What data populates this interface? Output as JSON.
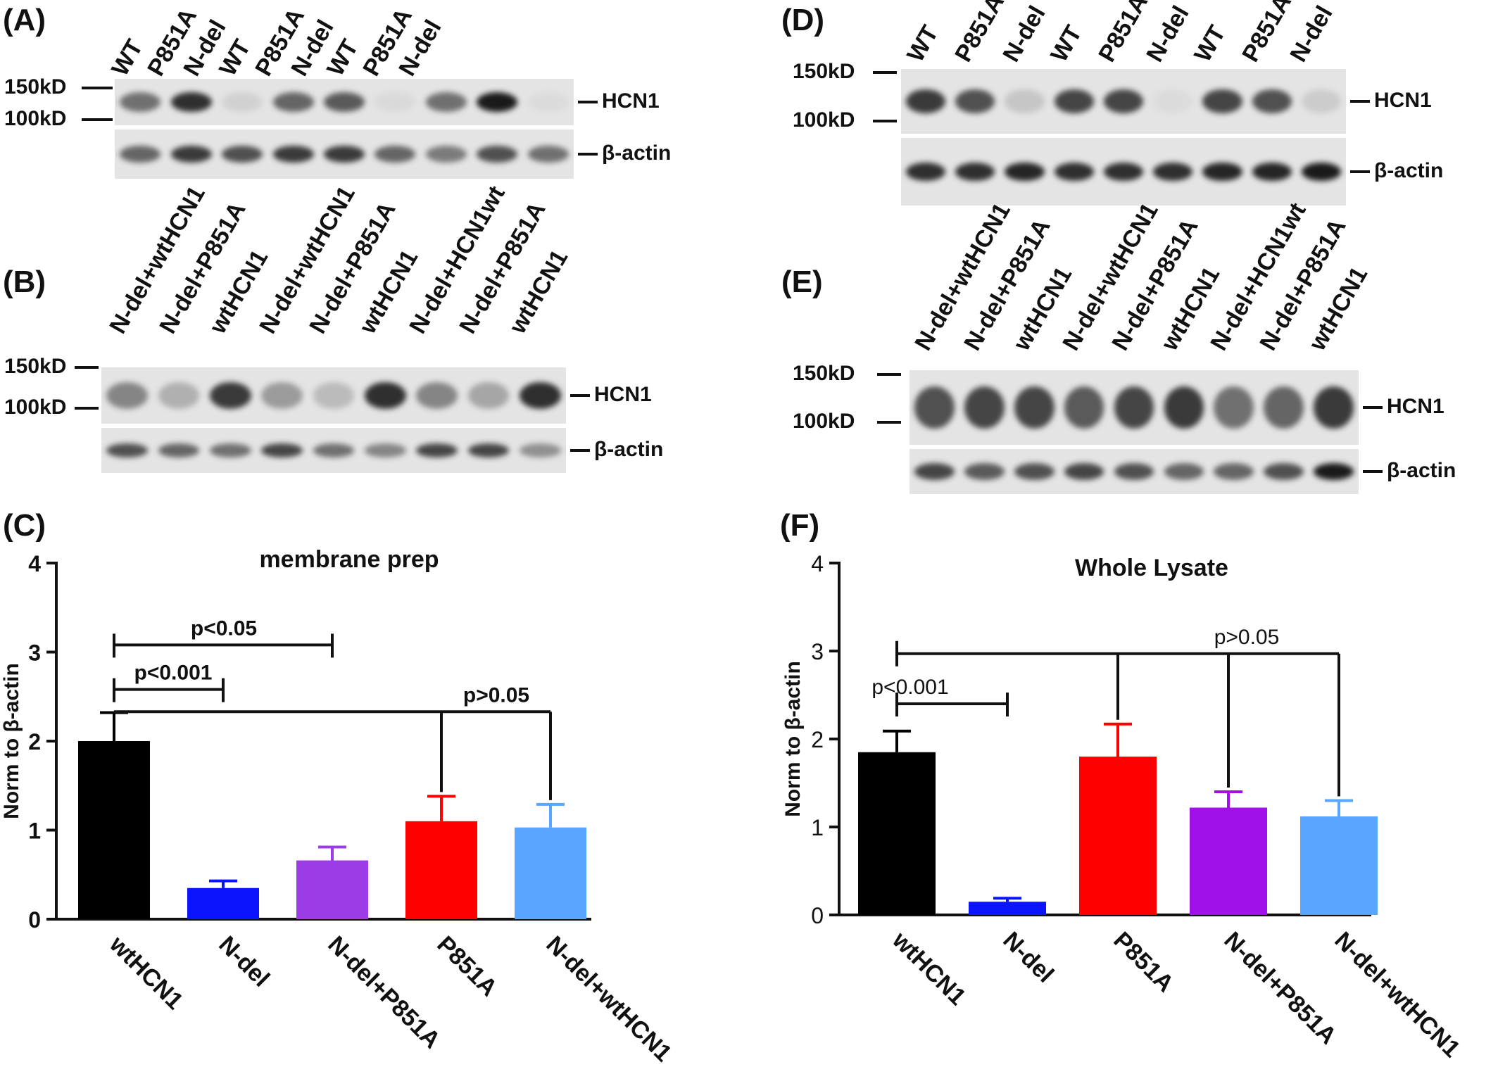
{
  "panels": {
    "A": {
      "label": "(A)",
      "lanes": [
        "WT",
        "P851A",
        "N-del",
        "WT",
        "P851A",
        "N-del",
        "WT",
        "P851A",
        "N-del"
      ],
      "markers": [
        "150kD",
        "100kD"
      ],
      "bands": [
        "HCN1",
        "β-actin"
      ],
      "hcn1_intensity": [
        0.55,
        0.85,
        0.1,
        0.6,
        0.65,
        0.06,
        0.55,
        0.95,
        0.05
      ],
      "actin_intensity": [
        0.6,
        0.8,
        0.7,
        0.8,
        0.8,
        0.6,
        0.5,
        0.7,
        0.55
      ]
    },
    "B": {
      "label": "(B)",
      "lanes": [
        "N-del+wtHCN1",
        "N-del+P851A",
        "wtHCN1",
        "N-del+wtHCN1",
        "N-del+P851A",
        "wtHCN1",
        "N-del+HCN1wt",
        "N-del+P851A",
        "wtHCN1"
      ],
      "markers": [
        "150kD",
        "100kD"
      ],
      "bands": [
        "HCN1",
        "β-actin"
      ],
      "hcn1_intensity": [
        0.45,
        0.25,
        0.8,
        0.35,
        0.2,
        0.85,
        0.45,
        0.3,
        0.85
      ],
      "actin_intensity": [
        0.7,
        0.6,
        0.55,
        0.75,
        0.55,
        0.45,
        0.75,
        0.75,
        0.4
      ]
    },
    "D": {
      "label": "(D)",
      "lanes": [
        "WT",
        "P851A",
        "N-del",
        "WT",
        "P851A",
        "N-del",
        "WT",
        "P851A",
        "N-del"
      ],
      "markers": [
        "150kD",
        "100kD"
      ],
      "bands": [
        "HCN1",
        "β-actin"
      ],
      "hcn1_intensity": [
        0.8,
        0.7,
        0.15,
        0.75,
        0.75,
        0.05,
        0.75,
        0.7,
        0.12
      ],
      "actin_intensity": [
        0.85,
        0.85,
        0.9,
        0.85,
        0.85,
        0.85,
        0.9,
        0.9,
        0.95
      ]
    },
    "E": {
      "label": "(E)",
      "lanes": [
        "N-del+wtHCN1",
        "N-del+P851A",
        "wtHCN1",
        "N-del+wtHCN1",
        "N-del+P851A",
        "wtHCN1",
        "N-del+HCN1wt",
        "N-del+P851A",
        "wtHCN1"
      ],
      "markers": [
        "150kD",
        "100kD"
      ],
      "bands": [
        "HCN1",
        "β-actin"
      ],
      "hcn1_intensity": [
        0.7,
        0.75,
        0.75,
        0.65,
        0.75,
        0.8,
        0.55,
        0.6,
        0.8
      ],
      "actin_intensity": [
        0.75,
        0.65,
        0.7,
        0.75,
        0.7,
        0.6,
        0.6,
        0.7,
        0.95
      ]
    }
  },
  "chart_data": [
    {
      "panel_label": "(C)",
      "type": "bar",
      "title": "membrane prep",
      "ylabel": "Norm to β-actin",
      "ylim": [
        0,
        4
      ],
      "yticks": [
        "0",
        "1",
        "2",
        "3",
        "4"
      ],
      "categories": [
        "wtHCN1",
        "N-del",
        "N-del+P851A",
        "P851A",
        "N-del+wtHCN1"
      ],
      "values": [
        2.0,
        0.35,
        0.66,
        1.1,
        1.03
      ],
      "errors": [
        0.32,
        0.08,
        0.15,
        0.28,
        0.26
      ],
      "colors": [
        "#000000",
        "#0a14ff",
        "#9b3ce6",
        "#ff0000",
        "#58a6ff"
      ],
      "annotations": [
        {
          "text": "p<0.05",
          "from": 0,
          "to": 2,
          "y": 3.08
        },
        {
          "text": "p<0.001",
          "from": 0,
          "to": 1,
          "y": 2.58
        },
        {
          "text": "p>0.05",
          "from": 0,
          "to": 4,
          "y": 2.33
        }
      ]
    },
    {
      "panel_label": "(F)",
      "type": "bar",
      "title": "Whole Lysate",
      "ylabel": "Norm to β-actin",
      "ylim": [
        0,
        4
      ],
      "yticks": [
        "0",
        "1",
        "2",
        "3",
        "4"
      ],
      "categories": [
        "wtHCN1",
        "N-del",
        "P851A",
        "N-del+P851A",
        "N-del+wtHCN1"
      ],
      "values": [
        1.85,
        0.15,
        1.8,
        1.22,
        1.12
      ],
      "errors": [
        0.24,
        0.04,
        0.37,
        0.18,
        0.18
      ],
      "colors": [
        "#000000",
        "#0a14ff",
        "#ff0000",
        "#a010e8",
        "#58a6ff"
      ],
      "annotations": [
        {
          "text": "p>0.05",
          "from": 0,
          "to": 4,
          "y": 2.97
        },
        {
          "text": "p<0.001",
          "from": 0,
          "to": 1,
          "y": 2.4
        }
      ]
    }
  ]
}
